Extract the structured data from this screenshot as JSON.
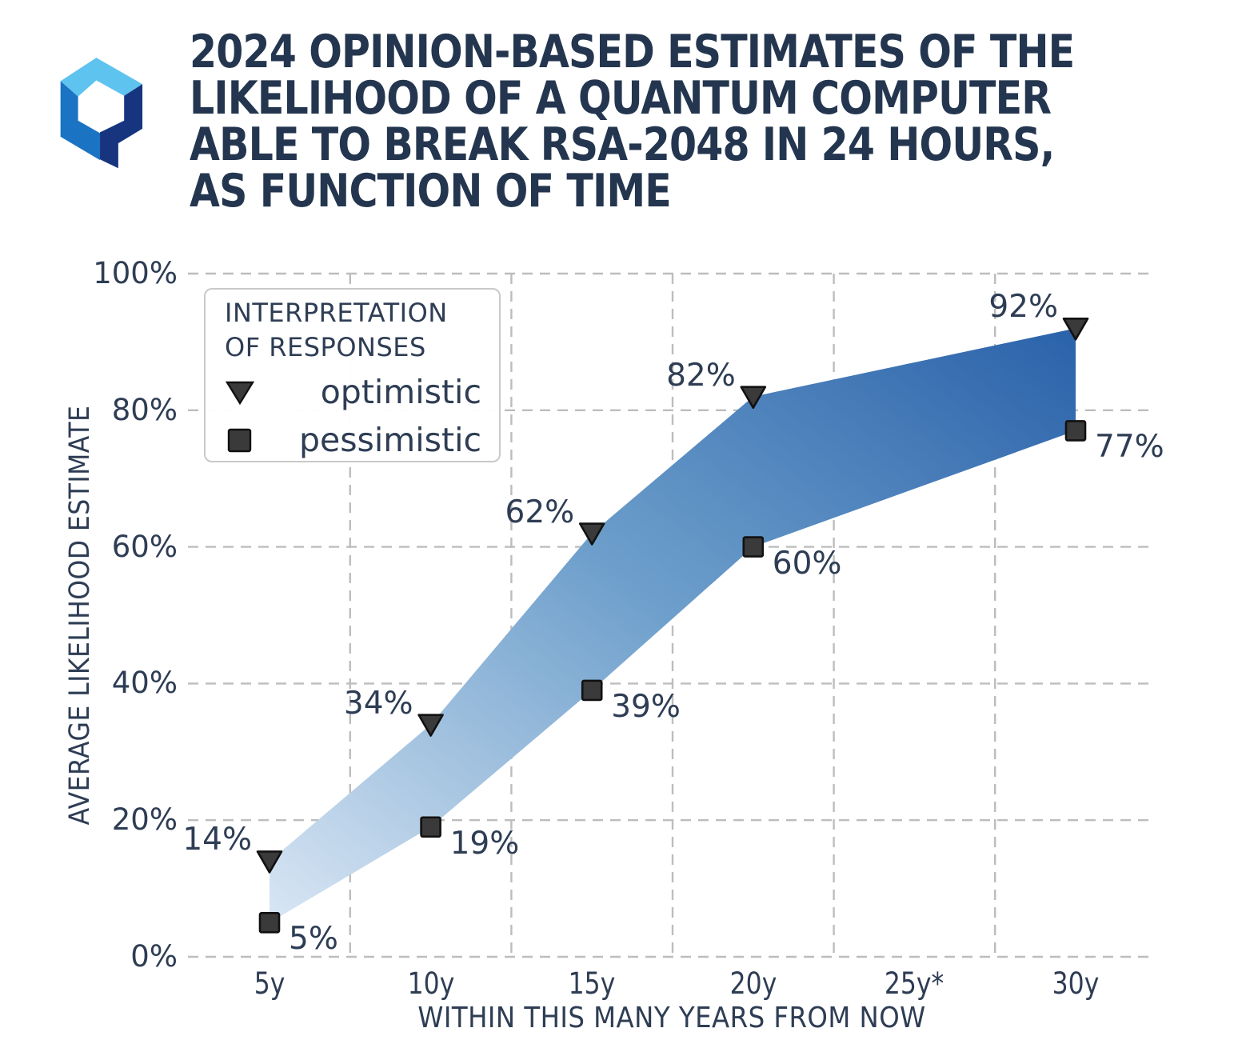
{
  "header": {
    "title_lines": [
      "2024 OPINION-BASED ESTIMATES OF THE",
      "LIKELIHOOD OF A QUANTUM COMPUTER",
      "ABLE TO BREAK RSA-2048 IN 24 HOURS,",
      "AS FUNCTION OF TIME"
    ]
  },
  "logo": {
    "description": "hexagonal Q mark",
    "colors": {
      "top": "#5fc3ef",
      "left": "#1b73c3",
      "right": "#16357e"
    }
  },
  "chart_data": {
    "type": "area",
    "title": "2024 OPINION-BASED ESTIMATES OF THE LIKELIHOOD OF A QUANTUM COMPUTER ABLE TO BREAK RSA-2048 IN 24 HOURS, AS FUNCTION OF TIME",
    "xlabel": "WITHIN THIS MANY YEARS FROM NOW",
    "ylabel": "AVERAGE LIKELIHOOD ESTIMATE",
    "x": [
      5,
      10,
      15,
      20,
      30
    ],
    "x_tick_years": [
      5,
      10,
      15,
      20,
      25,
      30
    ],
    "x_tick_labels": [
      "5y",
      "10y",
      "15y",
      "20y",
      "25y*",
      "30y"
    ],
    "y_tick_values": [
      0,
      20,
      40,
      60,
      80,
      100
    ],
    "y_tick_labels": [
      "0%",
      "20%",
      "40%",
      "60%",
      "80%",
      "100%"
    ],
    "ylim": [
      0,
      100
    ],
    "grid": "dashed horizontal lines at y ticks; dashed vertical lines midway between x ticks",
    "series": [
      {
        "name": "optimistic",
        "marker": "triangle-down",
        "values": [
          14,
          34,
          62,
          82,
          92
        ],
        "point_labels": [
          "14%",
          "34%",
          "62%",
          "82%",
          "92%"
        ],
        "label_side": "left-above"
      },
      {
        "name": "pessimistic",
        "marker": "square",
        "values": [
          5,
          19,
          39,
          60,
          77
        ],
        "point_labels": [
          "5%",
          "19%",
          "39%",
          "60%",
          "77%"
        ],
        "label_side": "right-below"
      }
    ],
    "band_gradient": [
      "#d9e6f4",
      "#6fa0cc",
      "#2a62aa"
    ],
    "marker_color": "#3a3a3a",
    "marker_edge_color": "#111111",
    "legend_position": "upper-left"
  },
  "legend": {
    "title_lines": [
      "INTERPRETATION",
      "OF RESPONSES"
    ],
    "items": [
      {
        "label": "optimistic",
        "marker": "triangle-down"
      },
      {
        "label": "pessimistic",
        "marker": "square"
      }
    ]
  },
  "colors": {
    "title_text": "#24364f",
    "body_text": "#2e3d54",
    "grid": "#bdbdbd",
    "background": "#ffffff"
  }
}
